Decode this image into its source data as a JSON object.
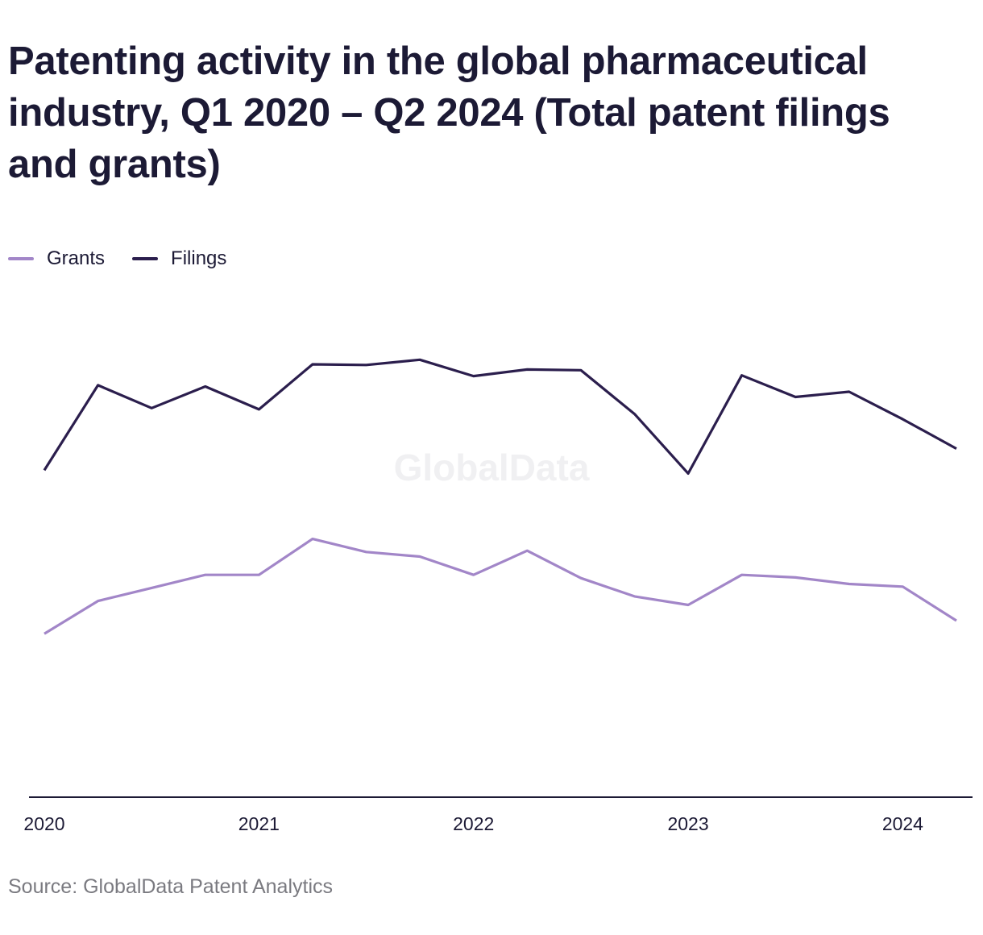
{
  "title": "Patenting activity in the global pharmaceutical industry, Q1 2020 – Q2 2024 (Total patent filings and grants)",
  "source": "Source: GlobalData Patent Analytics",
  "watermark": "GlobalData",
  "colors": {
    "grants": "#a286c8",
    "filings": "#2b1e4d",
    "axis": "#1c1a35"
  },
  "chart_data": {
    "type": "line",
    "title": "Patenting activity in the global pharmaceutical industry, Q1 2020 – Q2 2024 (Total patent filings and grants)",
    "categories": [
      "Q1 2020",
      "Q2 2020",
      "Q3 2020",
      "Q4 2020",
      "Q1 2021",
      "Q2 2021",
      "Q3 2021",
      "Q4 2021",
      "Q1 2022",
      "Q2 2022",
      "Q3 2022",
      "Q4 2022",
      "Q1 2023",
      "Q2 2023",
      "Q3 2023",
      "Q4 2023",
      "Q1 2024",
      "Q2 2024"
    ],
    "x_tick_labels": [
      "2020",
      "2021",
      "2022",
      "2023",
      "2024"
    ],
    "y_axis_visible": false,
    "grid": false,
    "legend_position": "top-left",
    "series": [
      {
        "name": "Grants",
        "color": "#a286c8",
        "values": [
          25,
          30,
          32,
          34,
          34,
          39.5,
          37.5,
          36.8,
          34,
          37.7,
          33.5,
          30.7,
          29.4,
          34,
          33.6,
          32.6,
          32.2,
          27
        ]
      },
      {
        "name": "Filings",
        "color": "#2b1e4d",
        "values": [
          50,
          63,
          59.5,
          62.8,
          59.3,
          66.2,
          66.1,
          66.9,
          64.4,
          65.4,
          65.3,
          58.6,
          49.5,
          64.5,
          61.2,
          62,
          57.8,
          53.3
        ]
      }
    ],
    "ylim": [
      0,
      80
    ]
  }
}
